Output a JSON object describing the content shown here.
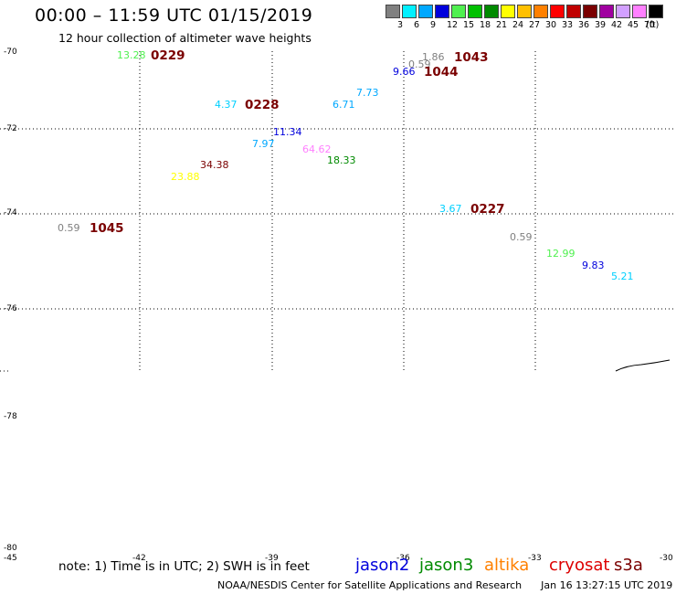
{
  "header": {
    "title": "00:00 – 11:59 UTC 01/15/2019",
    "subtitle": "12 hour collection of altimeter wave heights"
  },
  "legend": {
    "unit": "(ft)",
    "items": [
      {
        "label": "3",
        "color": "#808080"
      },
      {
        "label": "6",
        "color": "#00f0ff"
      },
      {
        "label": "9",
        "color": "#00a8ff"
      },
      {
        "label": "12",
        "color": "#0000dc"
      },
      {
        "label": "15",
        "color": "#50f050"
      },
      {
        "label": "18",
        "color": "#00c000"
      },
      {
        "label": "21",
        "color": "#008a00"
      },
      {
        "label": "24",
        "color": "#ffff00"
      },
      {
        "label": "27",
        "color": "#ffc000"
      },
      {
        "label": "30",
        "color": "#ff8000"
      },
      {
        "label": "33",
        "color": "#ff0000"
      },
      {
        "label": "36",
        "color": "#c00000"
      },
      {
        "label": "39",
        "color": "#7a0000"
      },
      {
        "label": "42",
        "color": "#a000a0"
      },
      {
        "label": "45",
        "color": "#d2a0ff"
      },
      {
        "label": "70",
        "color": "#ff80ff"
      },
      {
        "label": "",
        "color": "#000000"
      }
    ]
  },
  "axes": {
    "lat_labels": [
      "-70",
      "-72",
      "-74",
      "-76",
      "-78",
      "-80"
    ],
    "lon_labels": [
      "-45",
      "-42",
      "-39",
      "-36",
      "-33",
      "-30"
    ]
  },
  "observations": [
    {
      "text": "13.28",
      "color": "#50f050"
    },
    {
      "text": "0229",
      "color": "#7a0000"
    },
    {
      "text": "1.86",
      "color": "#808080"
    },
    {
      "text": "1043",
      "color": "#7a0000"
    },
    {
      "text": "0.59",
      "color": "#808080"
    },
    {
      "text": "9.66",
      "color": "#0000dc"
    },
    {
      "text": "1044",
      "color": "#7a0000"
    },
    {
      "text": "7.73",
      "color": "#00a8ff"
    },
    {
      "text": "4.37",
      "color": "#00d0ff"
    },
    {
      "text": "0228",
      "color": "#7a0000"
    },
    {
      "text": "6.71",
      "color": "#00a8ff"
    },
    {
      "text": "11.34",
      "color": "#0000dc"
    },
    {
      "text": "7.97",
      "color": "#00a8ff"
    },
    {
      "text": "64.62",
      "color": "#ff80ff"
    },
    {
      "text": "18.33",
      "color": "#008a00"
    },
    {
      "text": "34.38",
      "color": "#7a0000"
    },
    {
      "text": "23.88",
      "color": "#ffff00"
    },
    {
      "text": "3.67",
      "color": "#00d0ff"
    },
    {
      "text": "0227",
      "color": "#7a0000"
    },
    {
      "text": "0.59",
      "color": "#808080"
    },
    {
      "text": "1045",
      "color": "#7a0000"
    },
    {
      "text": "0.59",
      "color": "#808080"
    },
    {
      "text": "12.99",
      "color": "#50f050"
    },
    {
      "text": "9.83",
      "color": "#0000dc"
    },
    {
      "text": "5.21",
      "color": "#00d0ff"
    }
  ],
  "footer": {
    "note": "note: 1) Time is in UTC; 2) SWH is in feet",
    "satellites": [
      {
        "name": "jason2",
        "color": "#0000dc"
      },
      {
        "name": "jason3",
        "color": "#008a00"
      },
      {
        "name": "altika",
        "color": "#ff8000"
      },
      {
        "name": "cryosat",
        "color": "#dd0000"
      },
      {
        "name": "s3a",
        "color": "#7a0000"
      }
    ],
    "credit": "NOAA/NESDIS Center for Satellite Applications and Research",
    "timestamp": "Jan 16 13:27:15 UTC 2019"
  }
}
